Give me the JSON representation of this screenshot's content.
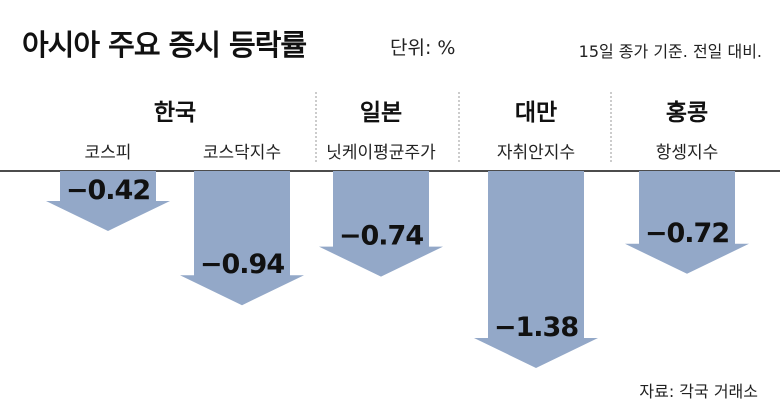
{
  "header": {
    "title": "아시아 주요 증시 등락률",
    "unit": "단위: %",
    "note": "15일 종가 기준. 전일 대비."
  },
  "footer": {
    "source": "자료: 각국 거래소"
  },
  "colors": {
    "arrow_fill": "#93a8c8",
    "baseline": "#111111",
    "divider": "#999999"
  },
  "chart_data": {
    "type": "bar",
    "title": "아시아 주요 증시 등락률",
    "ylabel": "",
    "groups": [
      {
        "country": "한국",
        "indices": [
          "코스피",
          "코스닥지수"
        ]
      },
      {
        "country": "일본",
        "indices": [
          "닛케이평균주가"
        ]
      },
      {
        "country": "대만",
        "indices": [
          "자취안지수"
        ]
      },
      {
        "country": "홍콩",
        "indices": [
          "항셍지수"
        ]
      }
    ],
    "categories": [
      "코스피",
      "코스닥지수",
      "닛케이평균주가",
      "자취안지수",
      "항셍지수"
    ],
    "values": [
      -0.42,
      -0.94,
      -0.74,
      -1.38,
      -0.72
    ],
    "value_labels": [
      "−0.42",
      "−0.94",
      "−0.74",
      "−1.38",
      "−0.72"
    ],
    "ylim": [
      -1.38,
      0
    ],
    "grid": false,
    "legend": "none"
  }
}
